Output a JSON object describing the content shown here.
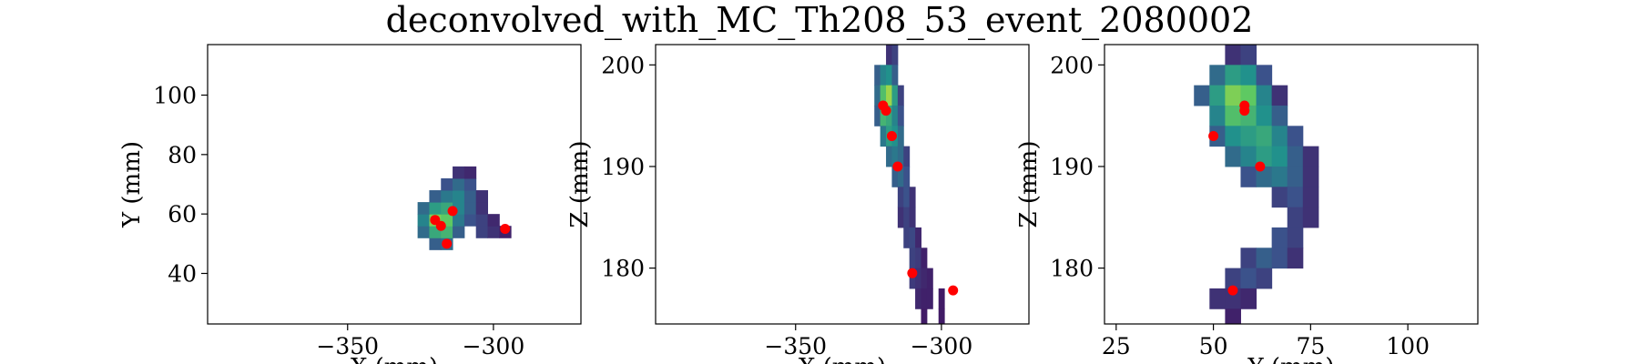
{
  "figure": {
    "title": "deconvolved_with_MC_Th208_53_event_2080002"
  },
  "chart_data": [
    {
      "type": "heatmap",
      "xlabel": "X (mm)",
      "ylabel": "Y (mm)",
      "xlim": [
        -398,
        -270
      ],
      "ylim": [
        23,
        117
      ],
      "xticks": [
        -350,
        -300
      ],
      "xtick_labels": [
        "−350",
        "−300"
      ],
      "yticks": [
        40,
        60,
        80,
        100
      ],
      "ytick_labels": [
        "40",
        "60",
        "80",
        "100"
      ],
      "colormap": "viridis",
      "marker_color": "#ff0000",
      "heatmap_cells": [
        {
          "x": -320,
          "y": 50,
          "v": 0.3
        },
        {
          "x": -316,
          "y": 50,
          "v": 0.35
        },
        {
          "x": -324,
          "y": 54,
          "v": 0.35
        },
        {
          "x": -320,
          "y": 54,
          "v": 0.6
        },
        {
          "x": -316,
          "y": 54,
          "v": 0.65
        },
        {
          "x": -312,
          "y": 54,
          "v": 0.3
        },
        {
          "x": -304,
          "y": 54,
          "v": 0.2
        },
        {
          "x": -300,
          "y": 54,
          "v": 0.15
        },
        {
          "x": -296,
          "y": 54,
          "v": 0.1
        },
        {
          "x": -324,
          "y": 58,
          "v": 0.45
        },
        {
          "x": -320,
          "y": 58,
          "v": 0.8
        },
        {
          "x": -316,
          "y": 58,
          "v": 0.75
        },
        {
          "x": -312,
          "y": 58,
          "v": 0.4
        },
        {
          "x": -308,
          "y": 58,
          "v": 0.25
        },
        {
          "x": -304,
          "y": 58,
          "v": 0.2
        },
        {
          "x": -300,
          "y": 58,
          "v": 0.12
        },
        {
          "x": -324,
          "y": 62,
          "v": 0.35
        },
        {
          "x": -320,
          "y": 62,
          "v": 0.55
        },
        {
          "x": -316,
          "y": 62,
          "v": 0.6
        },
        {
          "x": -312,
          "y": 62,
          "v": 0.45
        },
        {
          "x": -308,
          "y": 62,
          "v": 0.3
        },
        {
          "x": -304,
          "y": 62,
          "v": 0.15
        },
        {
          "x": -320,
          "y": 66,
          "v": 0.3
        },
        {
          "x": -316,
          "y": 66,
          "v": 0.4
        },
        {
          "x": -312,
          "y": 66,
          "v": 0.45
        },
        {
          "x": -308,
          "y": 66,
          "v": 0.3
        },
        {
          "x": -304,
          "y": 66,
          "v": 0.15
        },
        {
          "x": -316,
          "y": 70,
          "v": 0.25
        },
        {
          "x": -312,
          "y": 70,
          "v": 0.35
        },
        {
          "x": -308,
          "y": 70,
          "v": 0.25
        },
        {
          "x": -312,
          "y": 74,
          "v": 0.15
        },
        {
          "x": -308,
          "y": 74,
          "v": 0.12
        }
      ],
      "points": [
        {
          "x": -320,
          "y": 58
        },
        {
          "x": -318,
          "y": 56
        },
        {
          "x": -314,
          "y": 61
        },
        {
          "x": -316,
          "y": 50
        },
        {
          "x": -296,
          "y": 55
        }
      ]
    },
    {
      "type": "heatmap",
      "xlabel": "X (mm)",
      "ylabel": "Z (mm)",
      "xlim": [
        -398,
        -270
      ],
      "ylim": [
        174.5,
        202
      ],
      "xticks": [
        -350,
        -300
      ],
      "xtick_labels": [
        "−350",
        "−300"
      ],
      "yticks": [
        180,
        190,
        200
      ],
      "ytick_labels": [
        "180",
        "190",
        "200"
      ],
      "colormap": "viridis",
      "marker_color": "#ff0000",
      "heatmap_cells": [
        {
          "x": -318,
          "y": 201,
          "v": 0.15
        },
        {
          "x": -316,
          "y": 201,
          "v": 0.2
        },
        {
          "x": -322,
          "y": 199,
          "v": 0.3
        },
        {
          "x": -320,
          "y": 199,
          "v": 0.45
        },
        {
          "x": -318,
          "y": 199,
          "v": 0.5
        },
        {
          "x": -316,
          "y": 199,
          "v": 0.3
        },
        {
          "x": -322,
          "y": 197,
          "v": 0.35
        },
        {
          "x": -320,
          "y": 197,
          "v": 0.7
        },
        {
          "x": -318,
          "y": 197,
          "v": 0.85
        },
        {
          "x": -316,
          "y": 197,
          "v": 0.55
        },
        {
          "x": -314,
          "y": 197,
          "v": 0.2
        },
        {
          "x": -322,
          "y": 195,
          "v": 0.3
        },
        {
          "x": -320,
          "y": 195,
          "v": 0.65
        },
        {
          "x": -318,
          "y": 195,
          "v": 0.6
        },
        {
          "x": -316,
          "y": 195,
          "v": 0.45
        },
        {
          "x": -314,
          "y": 195,
          "v": 0.25
        },
        {
          "x": -320,
          "y": 193,
          "v": 0.4
        },
        {
          "x": -318,
          "y": 193,
          "v": 0.55
        },
        {
          "x": -316,
          "y": 193,
          "v": 0.5
        },
        {
          "x": -314,
          "y": 193,
          "v": 0.35
        },
        {
          "x": -318,
          "y": 191,
          "v": 0.35
        },
        {
          "x": -316,
          "y": 191,
          "v": 0.4
        },
        {
          "x": -314,
          "y": 191,
          "v": 0.35
        },
        {
          "x": -312,
          "y": 191,
          "v": 0.2
        },
        {
          "x": -316,
          "y": 189,
          "v": 0.3
        },
        {
          "x": -314,
          "y": 189,
          "v": 0.35
        },
        {
          "x": -312,
          "y": 189,
          "v": 0.25
        },
        {
          "x": -314,
          "y": 187,
          "v": 0.2
        },
        {
          "x": -312,
          "y": 187,
          "v": 0.25
        },
        {
          "x": -310,
          "y": 187,
          "v": 0.15
        },
        {
          "x": -314,
          "y": 185,
          "v": 0.15
        },
        {
          "x": -312,
          "y": 185,
          "v": 0.2
        },
        {
          "x": -310,
          "y": 185,
          "v": 0.15
        },
        {
          "x": -312,
          "y": 183,
          "v": 0.2
        },
        {
          "x": -310,
          "y": 183,
          "v": 0.22
        },
        {
          "x": -308,
          "y": 183,
          "v": 0.12
        },
        {
          "x": -310,
          "y": 181,
          "v": 0.2
        },
        {
          "x": -308,
          "y": 181,
          "v": 0.18
        },
        {
          "x": -306,
          "y": 181,
          "v": 0.1
        },
        {
          "x": -310,
          "y": 179,
          "v": 0.18
        },
        {
          "x": -308,
          "y": 179,
          "v": 0.15
        },
        {
          "x": -306,
          "y": 179,
          "v": 0.12
        },
        {
          "x": -304,
          "y": 179,
          "v": 0.1
        },
        {
          "x": -308,
          "y": 177,
          "v": 0.12
        },
        {
          "x": -306,
          "y": 177,
          "v": 0.1
        },
        {
          "x": -304,
          "y": 177,
          "v": 0.1
        },
        {
          "x": -300,
          "y": 177,
          "v": 0.08
        },
        {
          "x": -306,
          "y": 175,
          "v": 0.08
        },
        {
          "x": -300,
          "y": 175,
          "v": 0.08
        }
      ],
      "points": [
        {
          "x": -320,
          "y": 196
        },
        {
          "x": -319,
          "y": 195.5
        },
        {
          "x": -317,
          "y": 193
        },
        {
          "x": -315,
          "y": 190
        },
        {
          "x": -310,
          "y": 179.5
        },
        {
          "x": -296,
          "y": 177.8
        }
      ]
    },
    {
      "type": "heatmap",
      "xlabel": "Y (mm)",
      "ylabel": "Z (mm)",
      "xlim": [
        22,
        118
      ],
      "ylim": [
        174.5,
        202
      ],
      "xticks": [
        25,
        50,
        75,
        100
      ],
      "xtick_labels": [
        "25",
        "50",
        "75",
        "100"
      ],
      "yticks": [
        180,
        190,
        200
      ],
      "ytick_labels": [
        "180",
        "190",
        "200"
      ],
      "colormap": "viridis",
      "marker_color": "#ff0000",
      "heatmap_cells": [
        {
          "x": 55,
          "y": 201,
          "v": 0.15
        },
        {
          "x": 59,
          "y": 201,
          "v": 0.2
        },
        {
          "x": 51,
          "y": 199,
          "v": 0.35
        },
        {
          "x": 55,
          "y": 199,
          "v": 0.55
        },
        {
          "x": 59,
          "y": 199,
          "v": 0.5
        },
        {
          "x": 63,
          "y": 199,
          "v": 0.25
        },
        {
          "x": 47,
          "y": 197,
          "v": 0.3
        },
        {
          "x": 51,
          "y": 197,
          "v": 0.55
        },
        {
          "x": 55,
          "y": 197,
          "v": 0.8
        },
        {
          "x": 59,
          "y": 197,
          "v": 0.75
        },
        {
          "x": 63,
          "y": 197,
          "v": 0.45
        },
        {
          "x": 67,
          "y": 197,
          "v": 0.15
        },
        {
          "x": 51,
          "y": 195,
          "v": 0.45
        },
        {
          "x": 55,
          "y": 195,
          "v": 0.7
        },
        {
          "x": 59,
          "y": 195,
          "v": 0.65
        },
        {
          "x": 63,
          "y": 195,
          "v": 0.5
        },
        {
          "x": 67,
          "y": 195,
          "v": 0.3
        },
        {
          "x": 51,
          "y": 193,
          "v": 0.3
        },
        {
          "x": 55,
          "y": 193,
          "v": 0.5
        },
        {
          "x": 59,
          "y": 193,
          "v": 0.55
        },
        {
          "x": 63,
          "y": 193,
          "v": 0.6
        },
        {
          "x": 67,
          "y": 193,
          "v": 0.45
        },
        {
          "x": 71,
          "y": 193,
          "v": 0.25
        },
        {
          "x": 55,
          "y": 191,
          "v": 0.35
        },
        {
          "x": 59,
          "y": 191,
          "v": 0.45
        },
        {
          "x": 63,
          "y": 191,
          "v": 0.55
        },
        {
          "x": 67,
          "y": 191,
          "v": 0.5
        },
        {
          "x": 71,
          "y": 191,
          "v": 0.3
        },
        {
          "x": 75,
          "y": 191,
          "v": 0.15
        },
        {
          "x": 59,
          "y": 189,
          "v": 0.25
        },
        {
          "x": 63,
          "y": 189,
          "v": 0.35
        },
        {
          "x": 67,
          "y": 189,
          "v": 0.4
        },
        {
          "x": 71,
          "y": 189,
          "v": 0.3
        },
        {
          "x": 75,
          "y": 189,
          "v": 0.15
        },
        {
          "x": 67,
          "y": 187,
          "v": 0.2
        },
        {
          "x": 71,
          "y": 187,
          "v": 0.25
        },
        {
          "x": 75,
          "y": 187,
          "v": 0.15
        },
        {
          "x": 71,
          "y": 185,
          "v": 0.2
        },
        {
          "x": 75,
          "y": 185,
          "v": 0.15
        },
        {
          "x": 67,
          "y": 183,
          "v": 0.25
        },
        {
          "x": 71,
          "y": 183,
          "v": 0.2
        },
        {
          "x": 59,
          "y": 181,
          "v": 0.2
        },
        {
          "x": 63,
          "y": 181,
          "v": 0.3
        },
        {
          "x": 67,
          "y": 181,
          "v": 0.25
        },
        {
          "x": 71,
          "y": 181,
          "v": 0.15
        },
        {
          "x": 55,
          "y": 179,
          "v": 0.2
        },
        {
          "x": 59,
          "y": 179,
          "v": 0.25
        },
        {
          "x": 63,
          "y": 179,
          "v": 0.2
        },
        {
          "x": 51,
          "y": 177,
          "v": 0.15
        },
        {
          "x": 55,
          "y": 177,
          "v": 0.15
        },
        {
          "x": 59,
          "y": 177,
          "v": 0.12
        },
        {
          "x": 55,
          "y": 175,
          "v": 0.1
        }
      ],
      "points": [
        {
          "x": 58,
          "y": 196
        },
        {
          "x": 58,
          "y": 195.5
        },
        {
          "x": 50,
          "y": 193
        },
        {
          "x": 62,
          "y": 190
        },
        {
          "x": 55,
          "y": 177.8
        }
      ]
    }
  ]
}
